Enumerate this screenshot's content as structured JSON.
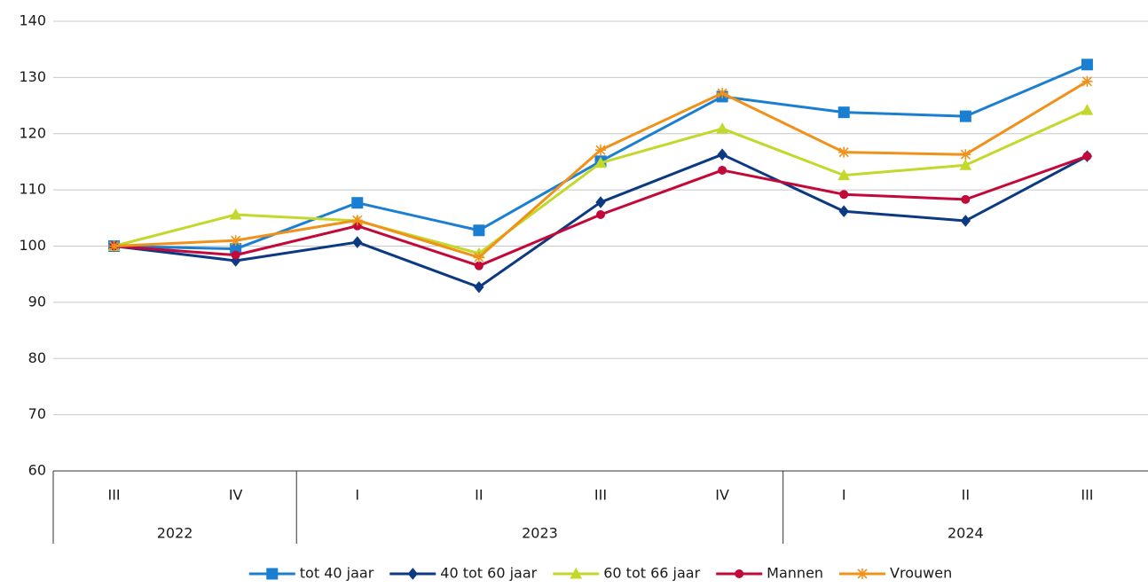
{
  "chart_data": {
    "type": "line",
    "categories": [
      "III",
      "IV",
      "I",
      "II",
      "III",
      "IV",
      "I",
      "II",
      "III"
    ],
    "years": [
      "2022",
      null,
      "2023",
      null,
      null,
      null,
      "2024",
      null,
      null
    ],
    "series": [
      {
        "name": "tot 40 jaar",
        "color": "#1b7fd1",
        "marker": "square",
        "values": [
          100,
          99.5,
          107.7,
          102.8,
          115.1,
          126.6,
          123.8,
          123.1,
          132.3
        ]
      },
      {
        "name": "40 tot 60 jaar",
        "color": "#0c3a82",
        "marker": "diamond",
        "values": [
          100,
          97.4,
          100.7,
          92.7,
          107.8,
          116.3,
          106.2,
          104.5,
          116
        ]
      },
      {
        "name": "60 tot 66 jaar",
        "color": "#c3d82a",
        "marker": "triangle",
        "values": [
          100,
          105.6,
          104.5,
          98.7,
          114.8,
          120.9,
          112.6,
          114.4,
          124.2
        ]
      },
      {
        "name": "Mannen",
        "color": "#c2093a",
        "marker": "circle",
        "values": [
          100,
          98.4,
          103.6,
          96.5,
          105.6,
          113.5,
          109.2,
          108.3,
          116
        ]
      },
      {
        "name": "Vrouwen",
        "color": "#f0911a",
        "marker": "star",
        "values": [
          100,
          101,
          104.6,
          98,
          117.1,
          127.2,
          116.7,
          116.3,
          129.3
        ]
      }
    ],
    "ylim": [
      60,
      140
    ],
    "yticks": [
      60,
      70,
      80,
      90,
      100,
      110,
      120,
      130,
      140
    ],
    "grid": true,
    "legend": "bottom"
  }
}
